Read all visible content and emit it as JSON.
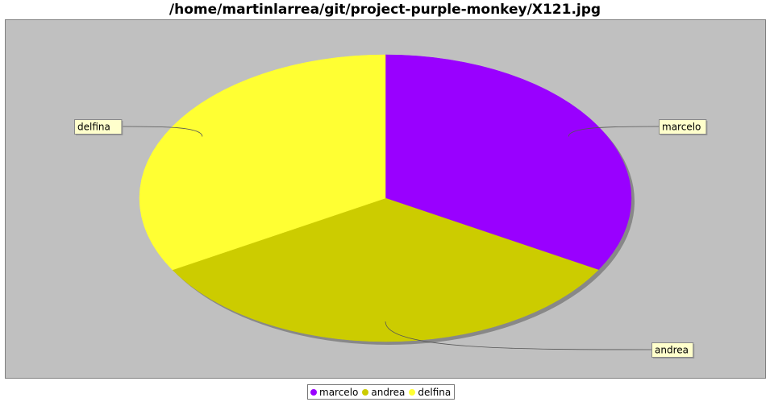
{
  "chart_data": {
    "type": "pie",
    "title": "/home/martinlarrea/git/project-purple-monkey/X121.jpg",
    "categories": [
      "marcelo",
      "andrea",
      "delfina"
    ],
    "values": [
      1,
      1,
      1
    ],
    "colors": [
      "#9900ff",
      "#cccc00",
      "#ffff33"
    ],
    "legend_position": "bottom-center",
    "plot_background": "#c0c0c0"
  }
}
